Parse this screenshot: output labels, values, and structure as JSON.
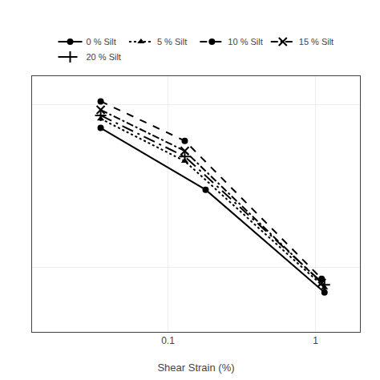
{
  "chart_data": {
    "type": "line",
    "xlabel": "Shear Strain (%)",
    "log": true,
    "xlim": [
      0.012,
      2.0
    ],
    "ylim": [
      0.04,
      1.5
    ],
    "xticks": [
      0.1,
      1
    ],
    "yticks": [
      0.1,
      1
    ],
    "tick_labels": "x",
    "grid": true,
    "legend": "top",
    "series": [
      {
        "name": "0 % Silt",
        "color": "#000000",
        "line_style": "solid",
        "marker": "circle",
        "x": [
          0.035,
          0.18,
          1.15
        ],
        "values": [
          0.72,
          0.3,
          0.07
        ]
      },
      {
        "name": "5 % Silt",
        "color": "#000000",
        "line_style": "dotted",
        "marker": "triangle-up",
        "x": [
          0.035,
          0.13,
          1.15
        ],
        "values": [
          0.82,
          0.45,
          0.075
        ]
      },
      {
        "name": "10 % Silt",
        "color": "#000000",
        "line_style": "dashed",
        "marker": "circle",
        "x": [
          0.035,
          0.13,
          1.1
        ],
        "values": [
          1.05,
          0.6,
          0.085
        ]
      },
      {
        "name": "15 % Silt",
        "color": "#000000",
        "line_style": "dashdot",
        "marker": "x",
        "x": [
          0.035,
          0.13,
          1.1
        ],
        "values": [
          0.93,
          0.52,
          0.08
        ]
      },
      {
        "name": "20 % Silt",
        "color": "#000000",
        "line_style": "longdashdot",
        "marker": "cross",
        "x": [
          0.035,
          0.13,
          1.15
        ],
        "values": [
          0.86,
          0.48,
          0.078
        ]
      }
    ]
  }
}
